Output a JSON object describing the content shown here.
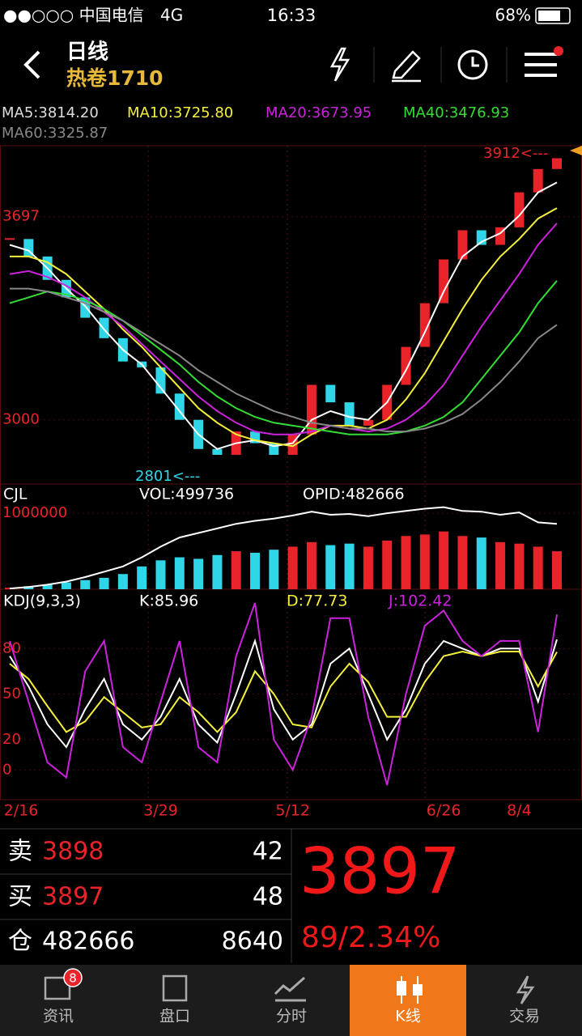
{
  "status_bar": {
    "carrier": "●●○○○ 中国电信",
    "network": "4G",
    "time": "16:33",
    "battery": "68%"
  },
  "header": {
    "period": "日线",
    "contract": "热卷1710"
  },
  "indicators": {
    "ma5": "MA5:3814.20",
    "ma10": "MA10:3725.80",
    "ma20": "MA20:3673.95",
    "ma40": "MA40:3476.93",
    "ma60": "MA60:3325.87",
    "cjl": "CJL",
    "vol": "VOL:499736",
    "opid": "OPID:482666",
    "kdj": "KDJ(9,3,3)",
    "k": "K:85.96",
    "d": "D:77.73",
    "j": "J:102.42"
  },
  "chart_data": [
    {
      "type": "candlestick",
      "up_color": "#e8242a",
      "down_color": "#2fd6e8",
      "categories": [
        "2/16",
        null,
        null,
        null,
        null,
        null,
        null,
        null,
        "3/29",
        null,
        null,
        null,
        null,
        null,
        null,
        "5/12",
        null,
        null,
        null,
        null,
        null,
        null,
        null,
        "6/26",
        null,
        null,
        null,
        "8/4",
        null,
        null
      ],
      "values": [
        3620,
        3560,
        3480,
        3420,
        3350,
        3280,
        3200,
        3180,
        3090,
        3000,
        2900,
        2880,
        2960,
        2920,
        2880,
        2950,
        3120,
        3060,
        2980,
        3000,
        3120,
        3250,
        3400,
        3550,
        3650,
        3600,
        3660,
        3780,
        3860,
        3897
      ],
      "series": [
        {
          "color": "#ffffff",
          "values": [
            3600,
            3580,
            3520,
            3450,
            3390,
            3310,
            3240,
            3190,
            3110,
            3030,
            2950,
            2900,
            2920,
            2930,
            2910,
            2920,
            3000,
            3030,
            3010,
            3000,
            3060,
            3170,
            3300,
            3440,
            3560,
            3610,
            3640,
            3700,
            3780,
            3814
          ]
        },
        {
          "color": "#f5f03a",
          "values": [
            3560,
            3560,
            3540,
            3500,
            3440,
            3380,
            3310,
            3250,
            3180,
            3110,
            3040,
            2990,
            2950,
            2930,
            2920,
            2910,
            2950,
            2980,
            2980,
            2970,
            3000,
            3070,
            3160,
            3270,
            3380,
            3480,
            3560,
            3620,
            3690,
            3726
          ]
        },
        {
          "color": "#cc22dd",
          "values": [
            3500,
            3510,
            3490,
            3460,
            3420,
            3370,
            3320,
            3260,
            3200,
            3140,
            3080,
            3030,
            2990,
            2960,
            2950,
            2950,
            2960,
            2980,
            2970,
            2960,
            2970,
            3000,
            3050,
            3120,
            3220,
            3320,
            3410,
            3500,
            3600,
            3674
          ]
        },
        {
          "color": "#33dd33",
          "values": [
            3400,
            3420,
            3440,
            3430,
            3410,
            3380,
            3340,
            3290,
            3240,
            3190,
            3130,
            3080,
            3040,
            3010,
            2990,
            2980,
            2970,
            2960,
            2950,
            2950,
            2950,
            2960,
            2980,
            3010,
            3060,
            3140,
            3220,
            3300,
            3400,
            3477
          ]
        },
        {
          "color": "#888888",
          "values": [
            3450,
            3450,
            3440,
            3420,
            3400,
            3370,
            3340,
            3300,
            3260,
            3220,
            3170,
            3130,
            3090,
            3060,
            3030,
            3010,
            2990,
            2980,
            2970,
            2970,
            2960,
            2960,
            2970,
            2990,
            3020,
            3070,
            3130,
            3200,
            3280,
            3326
          ]
        }
      ],
      "ylim": [
        2780,
        3940
      ],
      "yticks": [
        3697,
        3000
      ],
      "high_label": "3912<---",
      "low_label": "2801<---"
    },
    {
      "type": "bar",
      "ylim": [
        0,
        1150000
      ],
      "yticks": [
        1000000
      ],
      "values": [
        20000,
        40000,
        60000,
        90000,
        120000,
        150000,
        200000,
        300000,
        380000,
        420000,
        400000,
        450000,
        500000,
        480000,
        520000,
        560000,
        620000,
        580000,
        600000,
        560000,
        640000,
        700000,
        720000,
        760000,
        700000,
        680000,
        620000,
        600000,
        560000,
        499736
      ],
      "series": [
        {
          "color": "#ffffff",
          "values": [
            10000,
            30000,
            60000,
            100000,
            160000,
            230000,
            300000,
            420000,
            560000,
            680000,
            740000,
            800000,
            860000,
            900000,
            930000,
            970000,
            1020000,
            980000,
            990000,
            960000,
            1000000,
            1030000,
            1060000,
            1080000,
            1030000,
            1020000,
            980000,
            1010000,
            880000,
            860000
          ]
        }
      ]
    },
    {
      "type": "line",
      "ylim": [
        -18,
        110
      ],
      "yticks": [
        80,
        50,
        20,
        0
      ],
      "series": [
        {
          "color": "#ffffff",
          "values": [
            75,
            55,
            30,
            15,
            40,
            60,
            30,
            20,
            35,
            60,
            30,
            18,
            50,
            85,
            40,
            20,
            30,
            70,
            80,
            50,
            20,
            40,
            70,
            85,
            80,
            75,
            80,
            80,
            45,
            85.96
          ]
        },
        {
          "color": "#f5f03a",
          "values": [
            70,
            60,
            42,
            25,
            32,
            48,
            38,
            28,
            30,
            48,
            38,
            25,
            38,
            65,
            50,
            30,
            28,
            55,
            70,
            58,
            35,
            35,
            58,
            75,
            78,
            75,
            78,
            78,
            55,
            77.73
          ]
        },
        {
          "color": "#cc22dd",
          "values": [
            85,
            45,
            5,
            -5,
            65,
            85,
            15,
            5,
            45,
            85,
            15,
            5,
            75,
            110,
            20,
            0,
            35,
            100,
            100,
            35,
            -10,
            50,
            95,
            105,
            85,
            75,
            85,
            85,
            25,
            102.42
          ]
        }
      ]
    }
  ],
  "quote": {
    "sell": {
      "label": "卖",
      "price": 3898,
      "volume": 42
    },
    "buy": {
      "label": "买",
      "price": 3897,
      "volume": 48
    },
    "position": {
      "label": "仓",
      "value": 482666,
      "change": 8640
    },
    "last": 3897,
    "change": "89/2.34%"
  },
  "tabs": [
    {
      "label": "资讯",
      "badge": 8
    },
    {
      "label": "盘口"
    },
    {
      "label": "分时"
    },
    {
      "label": "K线"
    },
    {
      "label": "交易"
    }
  ]
}
